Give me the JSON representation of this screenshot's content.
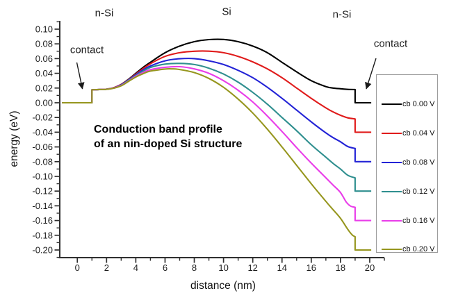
{
  "regions": {
    "left": "n-Si",
    "center": "Si",
    "right": "n-Si"
  },
  "contact": {
    "left_label": "contact",
    "right_label": "contact"
  },
  "note": {
    "line1": "Conduction band profile",
    "line2": "of an nin-doped Si structure"
  },
  "chart_data": {
    "type": "line",
    "title": "",
    "xlabel": "distance (nm)",
    "ylabel": "energy (eV)",
    "xlim": [
      -1.2,
      21.0
    ],
    "ylim": [
      -0.2104,
      0.1113
    ],
    "grid": false,
    "x_major_ticks": [
      0,
      2,
      4,
      6,
      8,
      10,
      12,
      14,
      16,
      18,
      20
    ],
    "x_minor_ticks": [
      1,
      3,
      5,
      7,
      9,
      11,
      13,
      15,
      17,
      19,
      21
    ],
    "y_major_ticks": [
      0.1,
      0.08,
      0.06,
      0.04,
      0.02,
      0.0,
      -0.02,
      -0.04,
      -0.06,
      -0.08,
      -0.1,
      -0.12,
      -0.14,
      -0.16,
      -0.18,
      -0.2
    ],
    "y_minor_ticks": [
      0.11,
      0.09,
      0.07,
      0.05,
      0.03,
      0.01,
      -0.01,
      -0.03,
      -0.05,
      -0.07,
      -0.09,
      -0.11,
      -0.13,
      -0.15,
      -0.17,
      -0.19,
      -0.21
    ],
    "y_tick_decimals": 2,
    "legend_position": "right-box",
    "contact_segments": {
      "left_x": [
        -1.05,
        1.0
      ],
      "right_x": [
        19.0,
        20.1
      ],
      "step_height_eV": 0.018
    },
    "legend": [
      {
        "label": "cb 0.00 V",
        "color": "#000000"
      },
      {
        "label": "cb 0.04 V",
        "color": "#e01b1b"
      },
      {
        "label": "cb 0.08 V",
        "color": "#2323d6"
      },
      {
        "label": "cb 0.12 V",
        "color": "#2f8f8f"
      },
      {
        "label": "cb 0.16 V",
        "color": "#e93de9"
      },
      {
        "label": "cb 0.20 V",
        "color": "#96961e"
      }
    ],
    "series": [
      {
        "name": "cb 0.00 V",
        "bias_V": 0.0,
        "color": "#000000",
        "left_level": 0.0,
        "right_level": 0.0,
        "mid": [
          [
            1,
            0.0176
          ],
          [
            1.5,
            0.018
          ],
          [
            2,
            0.0185
          ],
          [
            2.5,
            0.0205
          ],
          [
            3,
            0.025
          ],
          [
            3.5,
            0.032
          ],
          [
            4,
            0.04
          ],
          [
            4.5,
            0.048
          ],
          [
            5,
            0.055
          ],
          [
            6,
            0.068
          ],
          [
            7,
            0.077
          ],
          [
            8,
            0.083
          ],
          [
            9,
            0.0858
          ],
          [
            10,
            0.086
          ],
          [
            11,
            0.083
          ],
          [
            12,
            0.077
          ],
          [
            13,
            0.068
          ],
          [
            14,
            0.055
          ],
          [
            15,
            0.042
          ],
          [
            16,
            0.03
          ],
          [
            17,
            0.022
          ],
          [
            17.5,
            0.02
          ],
          [
            18,
            0.019
          ],
          [
            18.5,
            0.0182
          ],
          [
            19,
            0.018
          ]
        ]
      },
      {
        "name": "cb 0.04 V",
        "bias_V": 0.04,
        "color": "#e01b1b",
        "left_level": 0.0,
        "right_level": -0.04,
        "mid": [
          [
            1,
            0.0176
          ],
          [
            1.5,
            0.018
          ],
          [
            2,
            0.0185
          ],
          [
            2.5,
            0.0205
          ],
          [
            3,
            0.025
          ],
          [
            3.5,
            0.0315
          ],
          [
            4,
            0.039
          ],
          [
            4.5,
            0.0465
          ],
          [
            5,
            0.053
          ],
          [
            6,
            0.063
          ],
          [
            7,
            0.068
          ],
          [
            8,
            0.07
          ],
          [
            9,
            0.0701
          ],
          [
            10,
            0.068
          ],
          [
            11,
            0.063
          ],
          [
            12,
            0.0555
          ],
          [
            13,
            0.046
          ],
          [
            14,
            0.034
          ],
          [
            15,
            0.02
          ],
          [
            16,
            0.006
          ],
          [
            17,
            -0.007
          ],
          [
            17.5,
            -0.0125
          ],
          [
            18,
            -0.017
          ],
          [
            18.5,
            -0.0205
          ],
          [
            19,
            -0.022
          ]
        ]
      },
      {
        "name": "cb 0.08 V",
        "bias_V": 0.08,
        "color": "#2323d6",
        "left_level": 0.0,
        "right_level": -0.08,
        "mid": [
          [
            1,
            0.0176
          ],
          [
            1.5,
            0.018
          ],
          [
            2,
            0.0185
          ],
          [
            2.5,
            0.0202
          ],
          [
            3,
            0.0245
          ],
          [
            3.5,
            0.031
          ],
          [
            4,
            0.038
          ],
          [
            4.5,
            0.0445
          ],
          [
            5,
            0.05
          ],
          [
            6,
            0.057
          ],
          [
            7,
            0.0598
          ],
          [
            8,
            0.06
          ],
          [
            9,
            0.057
          ],
          [
            10,
            0.052
          ],
          [
            11,
            0.044
          ],
          [
            12,
            0.034
          ],
          [
            13,
            0.021
          ],
          [
            14,
            0.006
          ],
          [
            15,
            -0.01
          ],
          [
            16,
            -0.026
          ],
          [
            17,
            -0.041
          ],
          [
            17.5,
            -0.0475
          ],
          [
            18,
            -0.053
          ],
          [
            18.5,
            -0.0595
          ],
          [
            19,
            -0.062
          ]
        ]
      },
      {
        "name": "cb 0.12 V",
        "bias_V": 0.12,
        "color": "#2f8f8f",
        "left_level": 0.0,
        "right_level": -0.12,
        "mid": [
          [
            1,
            0.0176
          ],
          [
            1.5,
            0.018
          ],
          [
            2,
            0.0185
          ],
          [
            2.5,
            0.02
          ],
          [
            3,
            0.024
          ],
          [
            3.5,
            0.0305
          ],
          [
            4,
            0.037
          ],
          [
            4.5,
            0.043
          ],
          [
            5,
            0.048
          ],
          [
            6,
            0.0525
          ],
          [
            7,
            0.0535
          ],
          [
            8,
            0.052
          ],
          [
            9,
            0.047
          ],
          [
            10,
            0.039
          ],
          [
            11,
            0.028
          ],
          [
            12,
            0.014
          ],
          [
            13,
            -0.002
          ],
          [
            14,
            -0.02
          ],
          [
            15,
            -0.038
          ],
          [
            16,
            -0.057
          ],
          [
            17,
            -0.074
          ],
          [
            17.5,
            -0.0825
          ],
          [
            18,
            -0.09
          ],
          [
            18.5,
            -0.0985
          ],
          [
            19,
            -0.102
          ]
        ]
      },
      {
        "name": "cb 0.16 V",
        "bias_V": 0.16,
        "color": "#e93de9",
        "left_level": 0.0,
        "right_level": -0.16,
        "mid": [
          [
            1,
            0.0176
          ],
          [
            1.5,
            0.018
          ],
          [
            2,
            0.0185
          ],
          [
            2.5,
            0.02
          ],
          [
            3,
            0.0235
          ],
          [
            3.5,
            0.0295
          ],
          [
            4,
            0.036
          ],
          [
            4.5,
            0.041
          ],
          [
            5,
            0.045
          ],
          [
            6,
            0.0482
          ],
          [
            7,
            0.049
          ],
          [
            8,
            0.046
          ],
          [
            9,
            0.04
          ],
          [
            10,
            0.03
          ],
          [
            11,
            0.017
          ],
          [
            12,
            0.001
          ],
          [
            13,
            -0.018
          ],
          [
            14,
            -0.039
          ],
          [
            15,
            -0.061
          ],
          [
            16,
            -0.082
          ],
          [
            17,
            -0.102
          ],
          [
            17.5,
            -0.112
          ],
          [
            18,
            -0.122
          ],
          [
            18.4,
            -0.135
          ],
          [
            18.7,
            -0.1405
          ],
          [
            19,
            -0.142
          ]
        ]
      },
      {
        "name": "cb 0.20 V",
        "bias_V": 0.2,
        "color": "#96961e",
        "left_level": 0.0,
        "right_level": -0.2,
        "mid": [
          [
            1,
            0.0176
          ],
          [
            1.5,
            0.018
          ],
          [
            2,
            0.0183
          ],
          [
            2.5,
            0.0198
          ],
          [
            3,
            0.023
          ],
          [
            3.5,
            0.029
          ],
          [
            4,
            0.035
          ],
          [
            4.5,
            0.0395
          ],
          [
            5,
            0.043
          ],
          [
            6,
            0.0458
          ],
          [
            6.5,
            0.046
          ],
          [
            7,
            0.0452
          ],
          [
            8,
            0.041
          ],
          [
            9,
            0.033
          ],
          [
            10,
            0.021
          ],
          [
            11,
            0.005
          ],
          [
            12,
            -0.014
          ],
          [
            13,
            -0.036
          ],
          [
            14,
            -0.06
          ],
          [
            15,
            -0.085
          ],
          [
            16,
            -0.11
          ],
          [
            17,
            -0.134
          ],
          [
            17.5,
            -0.1455
          ],
          [
            18,
            -0.157
          ],
          [
            18.5,
            -0.172
          ],
          [
            18.8,
            -0.1795
          ],
          [
            19,
            -0.182
          ]
        ]
      }
    ]
  }
}
